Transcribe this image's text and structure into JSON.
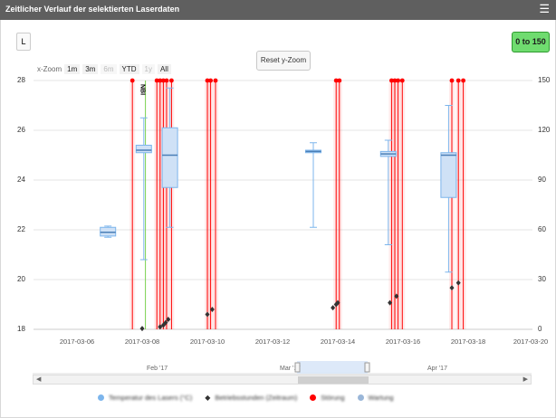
{
  "header": {
    "title": "Zeitlicher Verlauf der selektierten Laserdaten",
    "menu_icon": "hamburger-icon"
  },
  "toolbar": {
    "l_button": "L",
    "range_button": "0 to 150",
    "reset_zoom": "Reset y-Zoom",
    "zoom_label": "x-Zoom",
    "zoom_options": [
      "1m",
      "3m",
      "6m",
      "YTD",
      "1y",
      "All"
    ]
  },
  "chart_data": {
    "type": "boxplot",
    "title": "",
    "y_left": {
      "ticks": [
        "28",
        "26",
        "24",
        "22",
        "20",
        "18"
      ],
      "range": [
        18,
        28
      ]
    },
    "y_right": {
      "ticks": [
        "150",
        "120",
        "90",
        "60",
        "30",
        "0"
      ],
      "range": [
        0,
        150
      ]
    },
    "x_ticks": [
      "2017-03-06",
      "2017-03-08",
      "2017-03-10",
      "2017-03-12",
      "2017-03-14",
      "2017-03-16",
      "2017-03-18",
      "2017-03-20"
    ],
    "annotation": "NBI",
    "boxes": [
      {
        "date": "2017-03-06.95",
        "low": 21.7,
        "q1": 21.75,
        "median": 21.9,
        "q3": 22.1,
        "high": 22.15
      },
      {
        "date": "2017-03-08.05",
        "low": 20.8,
        "q1": 25.1,
        "median": 25.2,
        "q3": 25.4,
        "high": 26.5
      },
      {
        "date": "2017-03-08.85",
        "low": 22.1,
        "q1": 23.7,
        "median": 25.0,
        "q3": 26.1,
        "high": 27.7
      },
      {
        "date": "2017-03-13.25",
        "low": 22.1,
        "q1": 25.1,
        "median": 25.15,
        "q3": 25.2,
        "high": 25.5
      },
      {
        "date": "2017-03-15.55",
        "low": 21.4,
        "q1": 24.95,
        "median": 25.05,
        "q3": 25.15,
        "high": 25.6
      },
      {
        "date": "2017-03-17.4",
        "low": 20.3,
        "q1": 23.3,
        "median": 25.0,
        "q3": 25.1,
        "high": 27.0
      }
    ],
    "scatter": [
      {
        "date": "2017-03-08.0",
        "value": 0.5
      },
      {
        "date": "2017-03-08.55",
        "value": 1.5
      },
      {
        "date": "2017-03-08.65",
        "value": 2.5
      },
      {
        "date": "2017-03-08.72",
        "value": 4.0
      },
      {
        "date": "2017-03-08.8",
        "value": 6.0
      },
      {
        "date": "2017-03-10.0",
        "value": 9.0
      },
      {
        "date": "2017-03-10.15",
        "value": 12.0
      },
      {
        "date": "2017-03-13.85",
        "value": 13.0
      },
      {
        "date": "2017-03-13.95",
        "value": 15.0
      },
      {
        "date": "2017-03-14.0",
        "value": 16.0
      },
      {
        "date": "2017-03-15.6",
        "value": 16.0
      },
      {
        "date": "2017-03-15.8",
        "value": 20.0
      },
      {
        "date": "2017-03-17.5",
        "value": 25.0
      },
      {
        "date": "2017-03-17.7",
        "value": 28.0
      }
    ],
    "events_red": [
      "2017-03-07.7",
      "2017-03-08.45",
      "2017-03-08.55",
      "2017-03-08.65",
      "2017-03-08.75",
      "2017-03-08.9",
      "2017-03-10.0",
      "2017-03-10.1",
      "2017-03-10.25",
      "2017-03-13.95",
      "2017-03-14.05",
      "2017-03-15.65",
      "2017-03-15.75",
      "2017-03-15.85",
      "2017-03-15.98",
      "2017-03-17.5",
      "2017-03-17.7",
      "2017-03-17.85"
    ],
    "event_green": "2017-03-08.1",
    "colors": {
      "box": "#7cb5ec",
      "boxfill": "#cfe1f6",
      "event": "#ff0000",
      "scatter": "#333333",
      "marker_green": "#7ad14e"
    }
  },
  "navigator": {
    "labels": [
      "Feb '17",
      "Mar '17",
      "Apr '17"
    ]
  },
  "legend": {
    "items": [
      {
        "label": "Temperatur des Lasers (°C)",
        "color": "#7cb5ec"
      },
      {
        "label": "Betriebsstunden (Zeitraum)",
        "color": "#333333"
      },
      {
        "label": "Störung",
        "color": "#ff0000"
      },
      {
        "label": "Wartung",
        "color": "#9ab6d8"
      }
    ]
  }
}
